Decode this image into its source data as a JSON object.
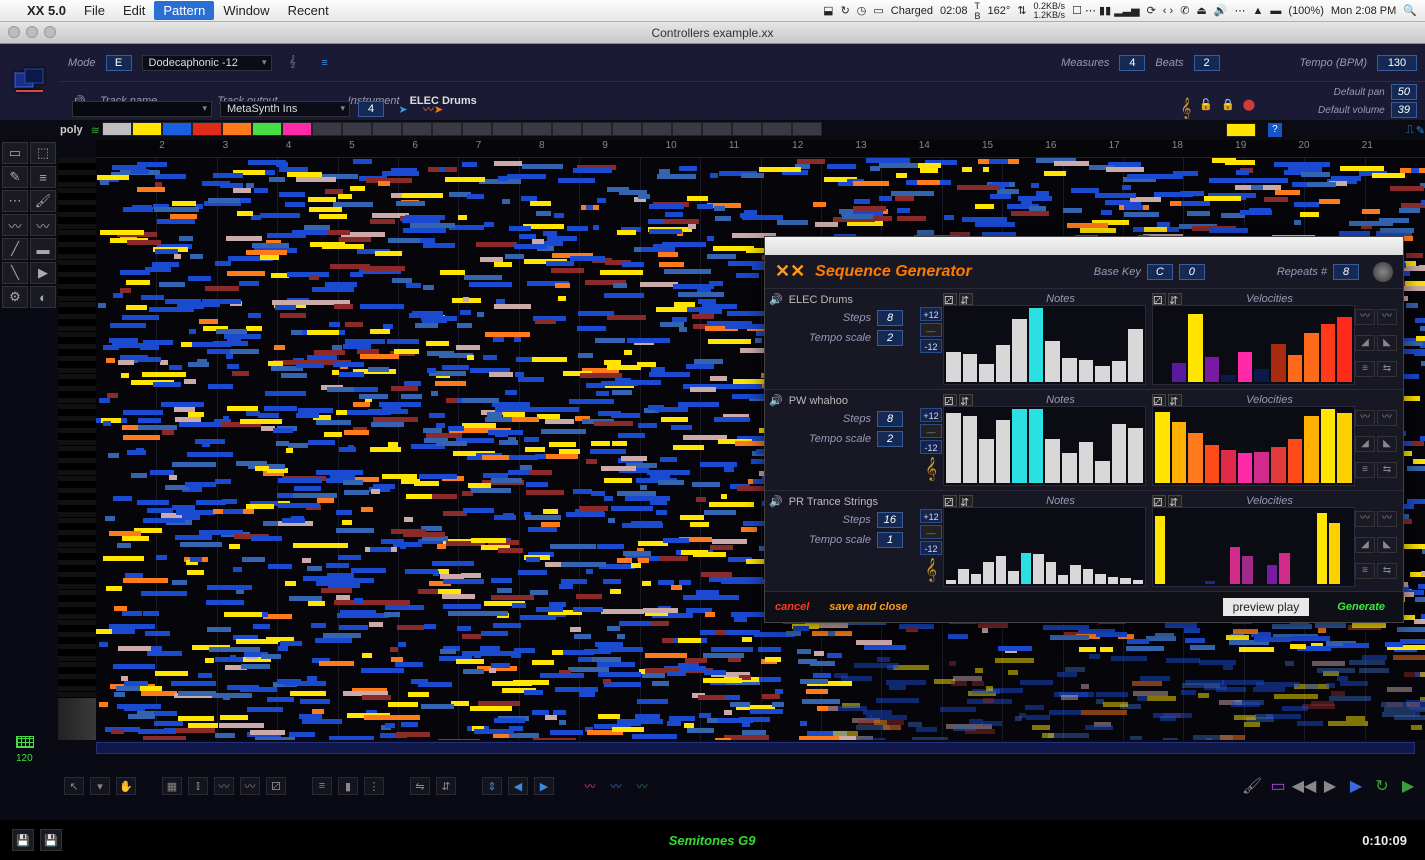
{
  "menubar": {
    "app": "XX 5.0",
    "items": [
      "File",
      "Edit",
      "Pattern",
      "Window",
      "Recent"
    ],
    "selected_index": 2,
    "tray": {
      "charged": "Charged",
      "clock": "02:08",
      "temp": "162°",
      "net_up": "0.2KB/s",
      "net_down": "1.2KB/s",
      "battery": "(100%)",
      "datetime": "Mon 2:08 PM"
    }
  },
  "window": {
    "title": "Controllers example.xx"
  },
  "header": {
    "mode_label": "Mode",
    "mode": "E",
    "scale": "Dodecaphonic -12",
    "measures_label": "Measures",
    "measures": "4",
    "beats_label": "Beats",
    "beats": "2",
    "tempo_label": "Tempo (BPM)",
    "tempo": "130",
    "trackname_label": "Track name",
    "trackoutput_label": "Track output",
    "trackoutput": "MetaSynth Ins",
    "channel": "4",
    "instrument_label": "Instrument",
    "instrument": "ELEC Drums",
    "pan_label": "Default pan",
    "pan": "50",
    "vol_label": "Default volume",
    "vol": "39"
  },
  "poly": {
    "label": "poly",
    "swatches": [
      "#bfbfbf",
      "#ffe500",
      "#1860e0",
      "#e02a1a",
      "#ff7a1a",
      "#46e046",
      "#ff2aa8",
      "#3a3a46",
      "#3a3a46",
      "#3a3a46",
      "#3a3a46",
      "#3a3a46",
      "#3a3a46",
      "#3a3a46",
      "#3a3a46",
      "#3a3a46",
      "#3a3a46",
      "#3a3a46",
      "#3a3a46",
      "#3a3a46",
      "#3a3a46",
      "#3a3a46",
      "#3a3a46",
      "#3a3a46"
    ],
    "extra_swatch": "#ffe500"
  },
  "ruler": {
    "start": 2,
    "end": 21
  },
  "zoom": "120",
  "status": {
    "text": "Semitones G9",
    "time": "0:10:09"
  },
  "grid": {
    "note_colors": [
      "#1a4ad0",
      "#ffe500",
      "#3464b0",
      "#8a2a2a",
      "#ff7a1a",
      "#caa",
      "#3aa0e0"
    ],
    "seed": 42
  },
  "seqgen": {
    "title": "Sequence Generator",
    "basekey_label": "Base Key",
    "basekey": "C",
    "basekey_oct": "0",
    "repeats_label": "Repeats #",
    "repeats": "8",
    "oct_plus": "+12",
    "oct_minus": "-12",
    "tracks": [
      {
        "name": "ELEC Drums",
        "steps_label": "Steps",
        "steps": "8",
        "tscale_label": "Tempo scale",
        "tscale": "2",
        "clef": false,
        "notes": {
          "bars": [
            40,
            38,
            24,
            50,
            85,
            100,
            55,
            32,
            30,
            22,
            28,
            72
          ],
          "colors": [
            "#d8d8d8",
            "#d8d8d8",
            "#d8d8d8",
            "#d8d8d8",
            "#d8d8d8",
            "#2ae0e0",
            "#d8d8d8",
            "#d8d8d8",
            "#d8d8d8",
            "#d8d8d8",
            "#d8d8d8",
            "#d8d8d8"
          ]
        },
        "vel": {
          "bars": [
            0,
            26,
            92,
            34,
            10,
            40,
            18,
            52,
            36,
            66,
            78,
            88
          ],
          "colors": [
            "#0a1a4a",
            "#5a1aa0",
            "#ffe500",
            "#7a1aa0",
            "#0a1a4a",
            "#ff2aa8",
            "#0a1a4a",
            "#aa2a10",
            "#ff6a1a",
            "#ff6a1a",
            "#ff3a1a",
            "#ff2a1a"
          ]
        }
      },
      {
        "name": "PW whahoo",
        "steps_label": "Steps",
        "steps": "8",
        "tscale_label": "Tempo scale",
        "tscale": "2",
        "clef": true,
        "notes": {
          "bars": [
            95,
            90,
            60,
            85,
            100,
            100,
            60,
            40,
            55,
            30,
            80,
            75
          ],
          "colors": [
            "#d8d8d8",
            "#d8d8d8",
            "#d8d8d8",
            "#d8d8d8",
            "#2ae0e0",
            "#2ae0e0",
            "#d8d8d8",
            "#d8d8d8",
            "#d8d8d8",
            "#d8d8d8",
            "#d8d8d8",
            "#d8d8d8"
          ]
        },
        "vel": {
          "bars": [
            96,
            82,
            68,
            52,
            44,
            40,
            42,
            48,
            60,
            90,
            100,
            94
          ],
          "colors": [
            "#ffe500",
            "#ffb000",
            "#ff7a1a",
            "#ff4a1a",
            "#e02a4a",
            "#ff2aa8",
            "#d02a8a",
            "#e03a3a",
            "#ff4a1a",
            "#ffb000",
            "#ffe500",
            "#ffd000"
          ]
        }
      },
      {
        "name": "PR Trance Strings",
        "steps_label": "Steps",
        "steps": "16",
        "tscale_label": "Tempo scale",
        "tscale": "1",
        "clef": true,
        "notes": {
          "bars": [
            6,
            20,
            14,
            30,
            38,
            18,
            42,
            40,
            30,
            12,
            26,
            20,
            14,
            10,
            8,
            6
          ],
          "colors": [
            "#d8d8d8",
            "#d8d8d8",
            "#d8d8d8",
            "#d8d8d8",
            "#d8d8d8",
            "#d8d8d8",
            "#2ae0e0",
            "#d8d8d8",
            "#d8d8d8",
            "#d8d8d8",
            "#d8d8d8",
            "#d8d8d8",
            "#d8d8d8",
            "#d8d8d8",
            "#d8d8d8",
            "#d8d8d8"
          ]
        },
        "vel": {
          "bars": [
            92,
            0,
            0,
            0,
            4,
            0,
            50,
            38,
            0,
            26,
            42,
            0,
            0,
            96,
            82,
            0
          ],
          "colors": [
            "#ffe500",
            "#000",
            "#000",
            "#000",
            "#1a2a8a",
            "#000",
            "#d02a8a",
            "#a02a8a",
            "#000",
            "#7a1aa0",
            "#d02a8a",
            "#000",
            "#000",
            "#ffe500",
            "#ffd000",
            "#000"
          ]
        }
      }
    ],
    "footer": {
      "cancel": "cancel",
      "save": "save and close",
      "preview": "preview play",
      "generate": "Generate"
    }
  }
}
